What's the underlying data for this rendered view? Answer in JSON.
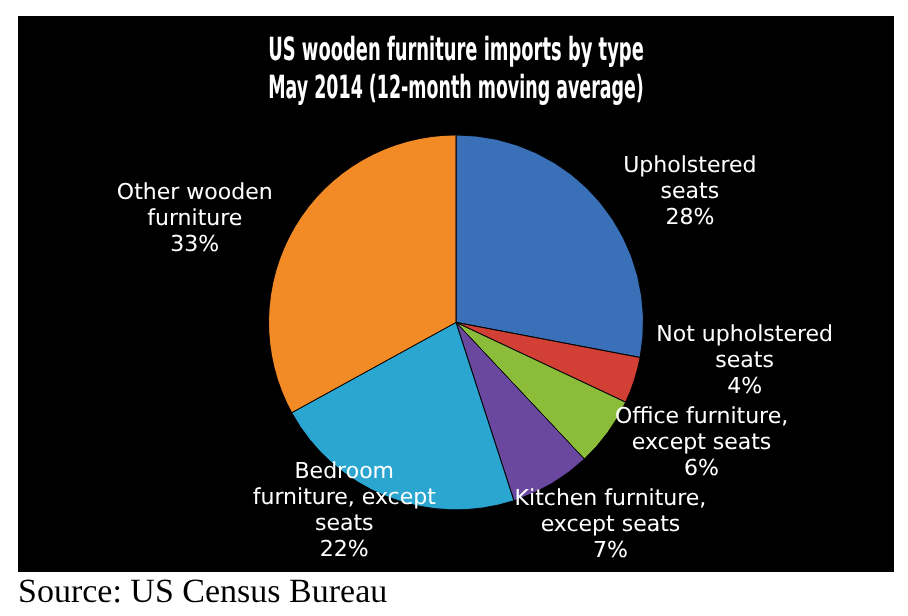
{
  "chart_data": {
    "type": "pie",
    "title": "US wooden furniture imports by type\nMay 2014 (12-month moving average)",
    "categories": [
      "Upholstered seats",
      "Not upholstered seats",
      "Office furniture, except seats",
      "Kitchen furniture, except seats",
      "Bedroom furniture, except seats",
      "Other wooden furniture"
    ],
    "values": [
      28,
      4,
      6,
      7,
      22,
      33
    ],
    "value_labels": [
      "28%",
      "4%",
      "6%",
      "7%",
      "22%",
      "33%"
    ],
    "colors": [
      "#3a70b8",
      "#d23f35",
      "#8bbd3a",
      "#6a48a0",
      "#2ba6d0",
      "#f28a25"
    ],
    "annotations": [
      "Source: US Census Bureau"
    ]
  }
}
